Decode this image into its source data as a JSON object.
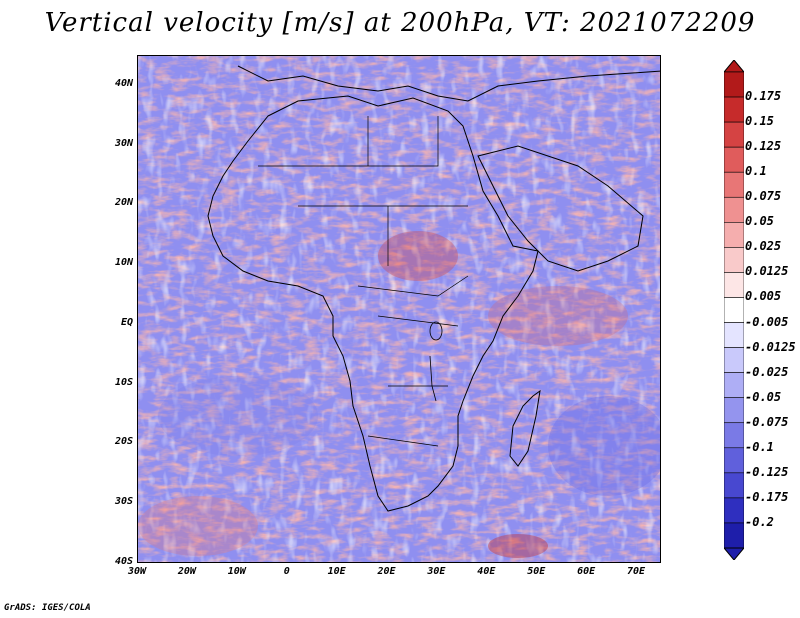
{
  "title": "Vertical velocity [m/s] at 200hPa, VT: 2021072209",
  "credit": "GrADS: IGES/COLA",
  "map": {
    "lat_labels": [
      "40N",
      "30N",
      "20N",
      "10N",
      "EQ",
      "10S",
      "20S",
      "30S",
      "40S"
    ],
    "lon_labels": [
      "30W",
      "20W",
      "10W",
      "0",
      "10E",
      "20E",
      "30E",
      "40E",
      "50E",
      "60E",
      "70E"
    ],
    "lat_range": [
      -40,
      45
    ],
    "lon_range": [
      -30,
      75
    ]
  },
  "colorbar": {
    "labels": [
      "0.175",
      "0.15",
      "0.125",
      "0.1",
      "0.075",
      "0.05",
      "0.025",
      "0.0125",
      "0.005",
      "-0.005",
      "-0.0125",
      "-0.025",
      "-0.05",
      "-0.075",
      "-0.1",
      "-0.125",
      "-0.175",
      "-0.2"
    ],
    "colors": [
      "#b21a1a",
      "#c62b2b",
      "#d54343",
      "#e05c5c",
      "#e87676",
      "#ef9191",
      "#f5aeae",
      "#f9caca",
      "#fde6e6",
      "#ffffff",
      "#e4e4ff",
      "#c9c9fb",
      "#aeaef5",
      "#9494ee",
      "#7a7ae6",
      "#6060dc",
      "#4848d0",
      "#2f2fbf",
      "#1e1eaa"
    ]
  }
}
